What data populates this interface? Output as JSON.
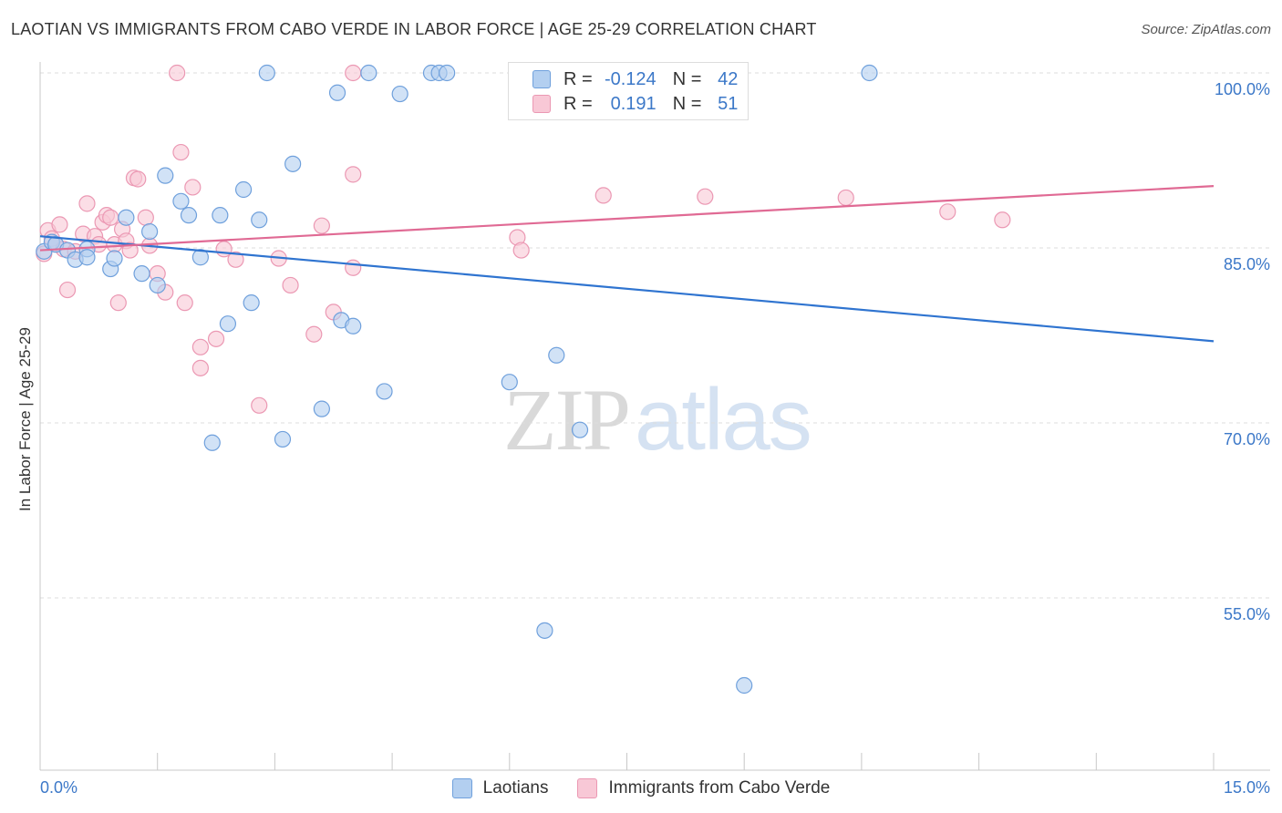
{
  "header": {
    "title": "LAOTIAN VS IMMIGRANTS FROM CABO VERDE IN LABOR FORCE | AGE 25-29 CORRELATION CHART",
    "source": "Source: ZipAtlas.com"
  },
  "watermark": {
    "zip": "ZIP",
    "atlas": "atlas"
  },
  "legend_top": {
    "r_label": "R =",
    "n_label": "N =",
    "rows": [
      {
        "r": "-0.124",
        "n": "42"
      },
      {
        "r": "0.191",
        "n": "51"
      }
    ]
  },
  "colors": {
    "blue_fill": "#b3cff0",
    "blue_stroke": "#6fa0dc",
    "blue_line": "#2f74d0",
    "pink_fill": "#f8c8d6",
    "pink_stroke": "#eb98b3",
    "pink_line": "#e06a94",
    "tick_text": "#3c78c8",
    "grid": "#dddddd"
  },
  "chart_data": {
    "type": "scatter",
    "title": "LAOTIAN VS IMMIGRANTS FROM CABO VERDE IN LABOR FORCE | AGE 25-29 CORRELATION CHART",
    "xlabel": "",
    "ylabel": "In Labor Force | Age 25-29",
    "xlim": [
      0,
      15
    ],
    "ylim": [
      40,
      101.5
    ],
    "x_tick_labels": [
      "0.0%",
      "15.0%"
    ],
    "y_ticks": [
      55,
      70,
      85,
      100
    ],
    "y_tick_labels": [
      "55.0%",
      "70.0%",
      "85.0%",
      "100.0%"
    ],
    "grid": "horizontal dashed",
    "legend_position": "bottom",
    "series": [
      {
        "name": "Laotians",
        "color": "#b3cff0",
        "trend": {
          "x": [
            0,
            15
          ],
          "y": [
            86.0,
            77.0
          ]
        },
        "points": [
          [
            0.05,
            84.7
          ],
          [
            0.15,
            85.5
          ],
          [
            0.2,
            85.3
          ],
          [
            0.35,
            84.8
          ],
          [
            0.45,
            84.0
          ],
          [
            0.6,
            84.9
          ],
          [
            0.6,
            84.2
          ],
          [
            0.9,
            83.2
          ],
          [
            0.95,
            84.1
          ],
          [
            1.1,
            87.6
          ],
          [
            1.3,
            82.8
          ],
          [
            1.4,
            86.4
          ],
          [
            1.5,
            81.8
          ],
          [
            1.6,
            91.2
          ],
          [
            1.8,
            89.0
          ],
          [
            1.9,
            87.8
          ],
          [
            2.05,
            84.2
          ],
          [
            2.2,
            68.3
          ],
          [
            2.3,
            87.8
          ],
          [
            2.4,
            78.5
          ],
          [
            2.6,
            90.0
          ],
          [
            2.7,
            80.3
          ],
          [
            2.8,
            87.4
          ],
          [
            2.9,
            100.0
          ],
          [
            3.1,
            68.6
          ],
          [
            3.23,
            92.2
          ],
          [
            3.6,
            71.2
          ],
          [
            3.8,
            98.3
          ],
          [
            3.85,
            78.8
          ],
          [
            4.0,
            78.3
          ],
          [
            4.2,
            100.0
          ],
          [
            4.4,
            72.7
          ],
          [
            4.6,
            98.2
          ],
          [
            5.0,
            100.0
          ],
          [
            5.1,
            100.0
          ],
          [
            5.2,
            100.0
          ],
          [
            6.0,
            73.5
          ],
          [
            6.45,
            52.2
          ],
          [
            6.6,
            75.8
          ],
          [
            6.9,
            69.4
          ],
          [
            9.0,
            47.5
          ],
          [
            10.6,
            100.0
          ]
        ]
      },
      {
        "name": "Immigrants from Cabo Verde",
        "color": "#f8c8d6",
        "trend": {
          "x": [
            0,
            15
          ],
          "y": [
            84.8,
            90.3
          ]
        },
        "points": [
          [
            0.05,
            84.5
          ],
          [
            0.1,
            86.5
          ],
          [
            0.15,
            85.8
          ],
          [
            0.2,
            85.3
          ],
          [
            0.25,
            87.0
          ],
          [
            0.3,
            84.9
          ],
          [
            0.35,
            81.4
          ],
          [
            0.45,
            84.7
          ],
          [
            0.55,
            86.2
          ],
          [
            0.6,
            88.8
          ],
          [
            0.7,
            86.0
          ],
          [
            0.75,
            85.3
          ],
          [
            0.8,
            87.2
          ],
          [
            0.85,
            87.8
          ],
          [
            0.9,
            87.6
          ],
          [
            0.95,
            85.3
          ],
          [
            1.0,
            80.3
          ],
          [
            1.05,
            86.6
          ],
          [
            1.1,
            85.6
          ],
          [
            1.15,
            84.8
          ],
          [
            1.2,
            91.0
          ],
          [
            1.25,
            90.9
          ],
          [
            1.35,
            87.6
          ],
          [
            1.4,
            85.2
          ],
          [
            1.5,
            82.8
          ],
          [
            1.6,
            81.2
          ],
          [
            1.75,
            100.0
          ],
          [
            1.8,
            93.2
          ],
          [
            1.85,
            80.3
          ],
          [
            1.95,
            90.2
          ],
          [
            2.05,
            74.7
          ],
          [
            2.05,
            76.5
          ],
          [
            2.25,
            77.2
          ],
          [
            2.35,
            84.9
          ],
          [
            2.5,
            84.0
          ],
          [
            2.8,
            71.5
          ],
          [
            3.05,
            84.1
          ],
          [
            3.2,
            81.8
          ],
          [
            3.5,
            77.6
          ],
          [
            3.6,
            86.9
          ],
          [
            3.75,
            79.5
          ],
          [
            4.0,
            83.3
          ],
          [
            4.0,
            91.3
          ],
          [
            4.0,
            100.0
          ],
          [
            6.1,
            85.9
          ],
          [
            6.15,
            84.8
          ],
          [
            7.2,
            89.5
          ],
          [
            8.5,
            89.4
          ],
          [
            10.3,
            89.3
          ],
          [
            11.6,
            88.1
          ],
          [
            12.3,
            87.4
          ]
        ]
      }
    ]
  }
}
